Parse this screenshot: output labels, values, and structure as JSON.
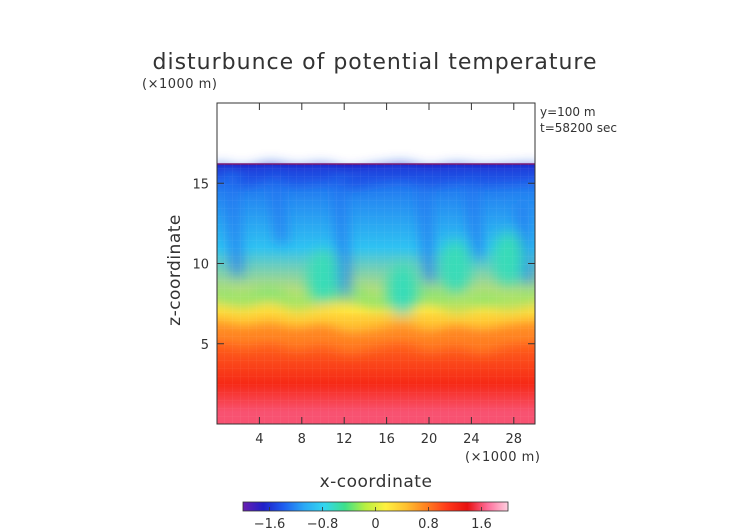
{
  "chart_data": {
    "type": "heatmap",
    "title": "disturbunce of potential temperature",
    "xlabel": "x-coordinate",
    "ylabel": "z-coordinate",
    "x_unit": "(×1000 m)",
    "z_unit": "(×1000 m)",
    "annotations": [
      "y=100 m",
      "t=58200 sec"
    ],
    "xlim": [
      0,
      30
    ],
    "ylim": [
      0,
      20
    ],
    "x_ticks": [
      4,
      8,
      12,
      16,
      20,
      24,
      28
    ],
    "y_ticks": [
      5,
      10,
      15
    ],
    "data_top_km": 16.2,
    "colorbar": {
      "range": [
        -2.0,
        2.0
      ],
      "ticks": [
        "−1.6",
        "−0.8",
        "0",
        "0.8",
        "1.6"
      ],
      "tick_values": [
        -1.6,
        -0.8,
        0,
        0.8,
        1.6
      ],
      "colors": [
        "#6a1fb0",
        "#1f1fc8",
        "#1f5ff0",
        "#2aa8f5",
        "#33d6f0",
        "#3ee08a",
        "#b8f040",
        "#fff040",
        "#ffc030",
        "#ff8020",
        "#ff3a1a",
        "#e81010",
        "#ff6e9a",
        "#ffd0e0"
      ]
    },
    "regions": [
      {
        "z_range": [
          16.0,
          16.2
        ],
        "value": -1.7
      },
      {
        "z_range": [
          14.5,
          16.0
        ],
        "value": -1.3
      },
      {
        "z_range": [
          7.5,
          14.5
        ],
        "value": -0.9
      },
      {
        "z_range": [
          6.5,
          7.5
        ],
        "value": 0.2
      },
      {
        "z_range": [
          3.5,
          6.5
        ],
        "value": 0.9
      },
      {
        "z_range": [
          1.5,
          3.5
        ],
        "value": 1.2
      },
      {
        "z_range": [
          0.0,
          1.5
        ],
        "value": 1.6
      }
    ]
  }
}
